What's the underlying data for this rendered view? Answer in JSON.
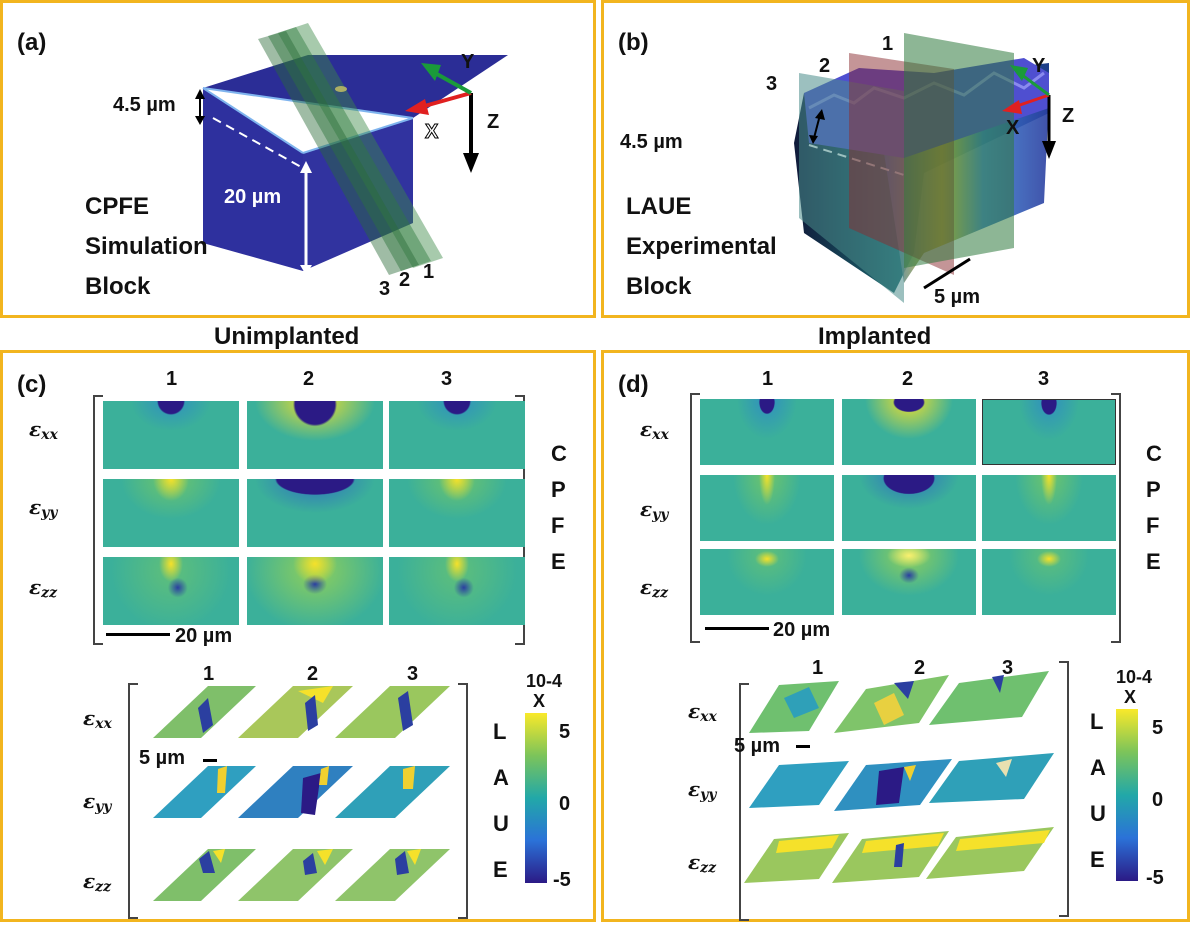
{
  "panel_a": {
    "label": "(a)",
    "thickness": "4.5 µm",
    "depth": "20 µm",
    "title": [
      "CPFE",
      "Simulation",
      "Block"
    ],
    "axis_x": "X",
    "axis_y": "Y",
    "axis_z": "Z",
    "planes": [
      "3",
      "2",
      "1"
    ]
  },
  "panel_b": {
    "label": "(b)",
    "thickness": "4.5 µm",
    "scale": "5 µm",
    "title": [
      "LAUE",
      "Experimental",
      "Block"
    ],
    "axis_x": "X",
    "axis_y": "Y",
    "axis_z": "Z",
    "planes": [
      "3",
      "2",
      "1"
    ]
  },
  "headers": {
    "unimplanted": "Unimplanted",
    "implanted": "Implanted"
  },
  "panel_c": {
    "label": "(c)",
    "columns": [
      "1",
      "2",
      "3"
    ],
    "cpfe_letters": [
      "C",
      "P",
      "F",
      "E"
    ],
    "cpfe_scale": "20 µm",
    "laue_columns": [
      "1",
      "2",
      "3"
    ],
    "laue_letters": [
      "L",
      "A",
      "U",
      "E"
    ],
    "laue_scale": "5 µm",
    "colorbar_exp": "10-4",
    "colorbar_x": "X",
    "colorbar_ticks": [
      "5",
      "0",
      "-5"
    ]
  },
  "panel_d": {
    "label": "(d)",
    "columns": [
      "1",
      "2",
      "3"
    ],
    "cpfe_letters": [
      "C",
      "P",
      "F",
      "E"
    ],
    "cpfe_scale": "20 µm",
    "laue_columns": [
      "1",
      "2",
      "3"
    ],
    "laue_letters": [
      "L",
      "A",
      "U",
      "E"
    ],
    "laue_scale": "5 µm",
    "colorbar_exp": "10-4",
    "colorbar_x": "X",
    "colorbar_ticks": [
      "5",
      "0",
      "-5"
    ]
  },
  "strain_labels": {
    "xx": "xx",
    "yy": "yy",
    "zz": "zz",
    "symbol": "ε"
  },
  "colors": {
    "frame": "#f2b51f",
    "block": "#2e2f9c",
    "field": "#3bb09a",
    "high": "#f5e12a",
    "low": "#2b1a85"
  }
}
